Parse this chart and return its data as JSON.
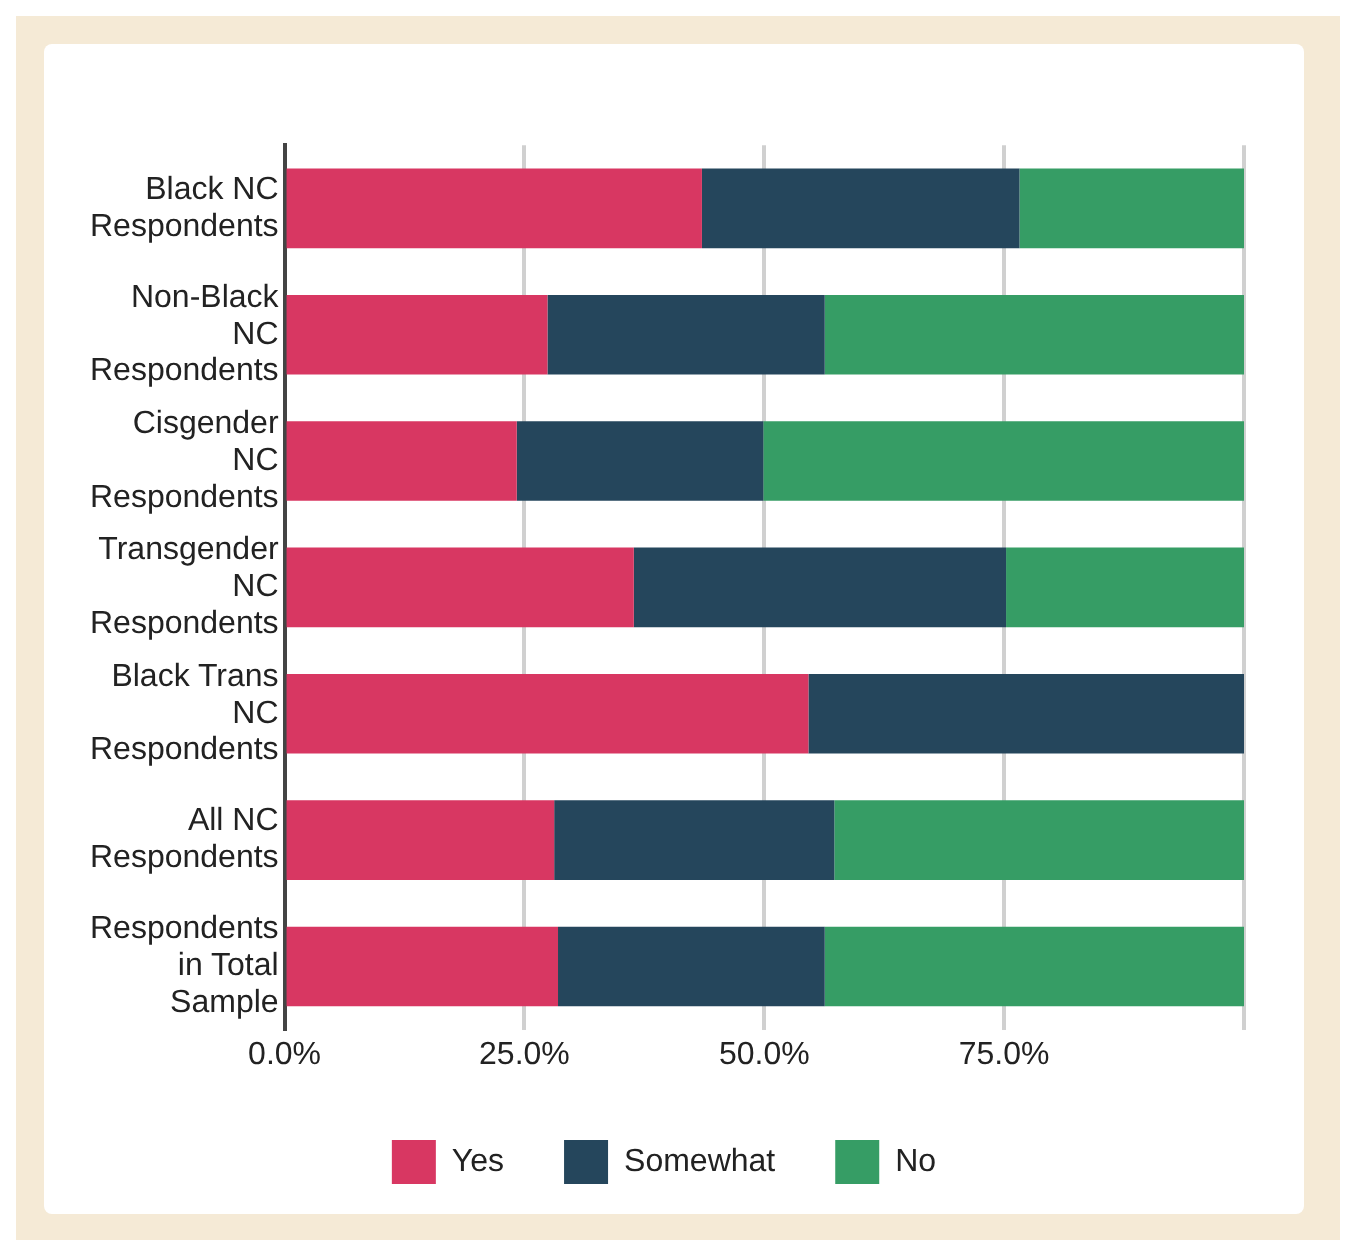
{
  "chart_data": {
    "type": "bar",
    "orientation": "horizontal",
    "stacked": true,
    "categories": [
      "Black NC Respondents",
      "Non-Black NC Respondents",
      "Cisgender NC Respondents",
      "Transgender NC Respondents",
      "Black Trans NC Respondents",
      "All NC Respondents",
      "Respondents in Total Sample"
    ],
    "series": [
      {
        "name": "Yes",
        "color": "#d83762",
        "values": [
          43.5,
          27.4,
          24.2,
          36.4,
          54.6,
          28.1,
          28.5
        ]
      },
      {
        "name": "Somewhat",
        "color": "#25465c",
        "values": [
          33.1,
          28.9,
          25.7,
          38.8,
          45.4,
          29.2,
          27.8
        ]
      },
      {
        "name": "No",
        "color": "#369d65",
        "values": [
          23.4,
          43.7,
          50.1,
          24.8,
          0,
          42.7,
          43.7
        ]
      }
    ],
    "xlim": [
      0,
      100
    ],
    "xticks": [
      {
        "value": 0,
        "label": "0.0%"
      },
      {
        "value": 25,
        "label": "25.0%"
      },
      {
        "value": 50,
        "label": "50.0%"
      },
      {
        "value": 75,
        "label": "75.0%"
      },
      {
        "value": 100,
        "label": null
      }
    ],
    "grid": "x",
    "legend": "bottom"
  }
}
